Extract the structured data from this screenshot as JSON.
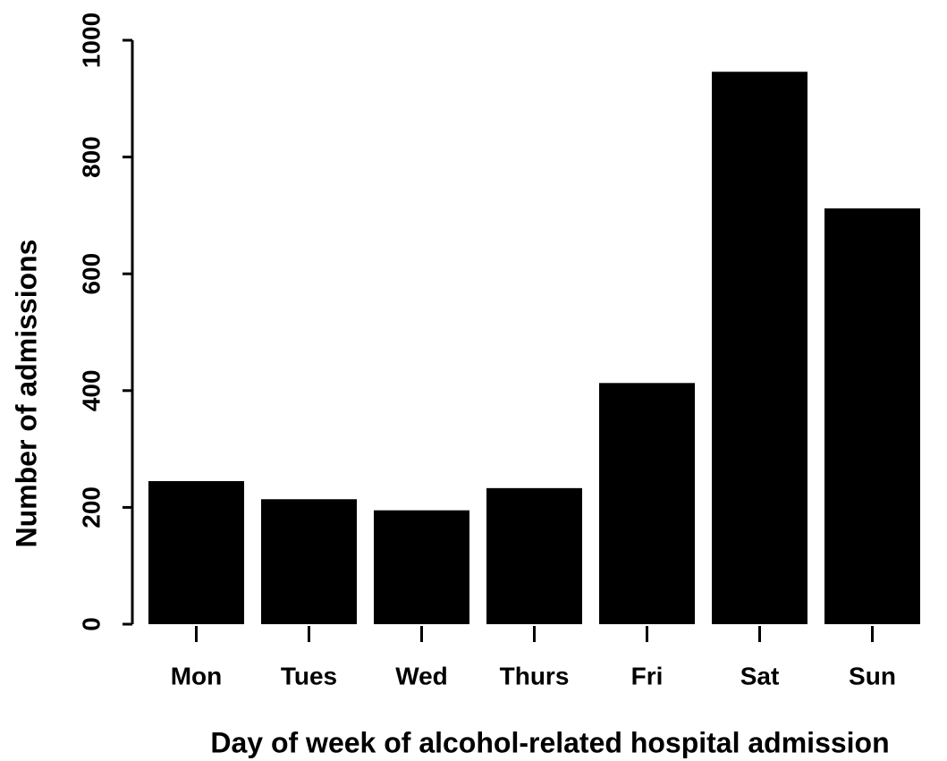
{
  "chart_data": {
    "type": "bar",
    "x_label": "Day of week of alcohol-related hospital admission",
    "y_label": "Number of admissions",
    "categories": [
      "Mon",
      "Tues",
      "Wed",
      "Thurs",
      "Fri",
      "Sat",
      "Sun"
    ],
    "values": [
      245,
      214,
      195,
      233,
      413,
      946,
      712
    ],
    "color": "#000000",
    "ylim": [
      0,
      1000
    ],
    "yticks": [
      0,
      200,
      400,
      600,
      800,
      1000
    ],
    "grid": false
  }
}
